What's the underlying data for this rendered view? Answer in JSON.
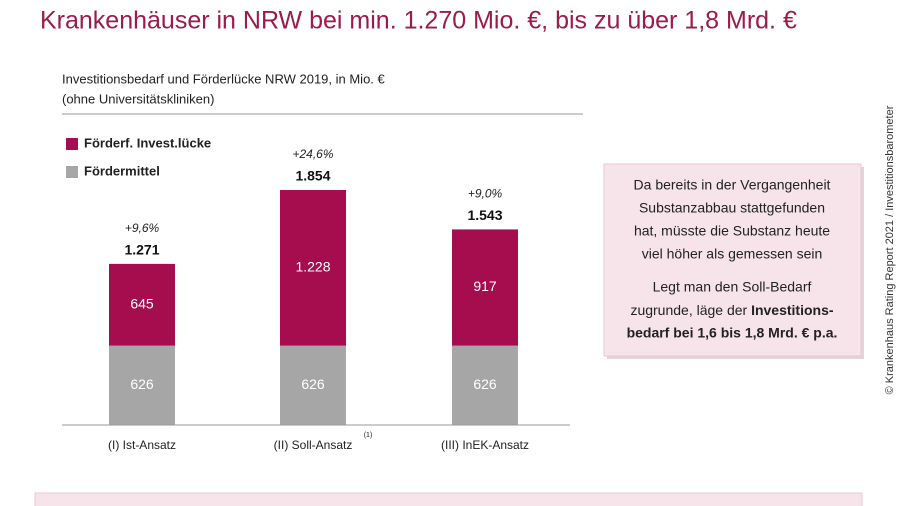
{
  "slide_title": "Krankenhäuser in NRW bei min. 1.270 Mio. €, bis zu über 1,8 Mrd. €",
  "side_note": "© Krankenhaus Rating Report 2021 / Investitionsbarometer",
  "chart_data": {
    "type": "stacked_bar",
    "title": "Investitionsbedarf und Förderlücke NRW 2019, in Mio. €",
    "subtitle": "(ohne Universitätskliniken)",
    "categories": [
      "(I) Ist-Ansatz",
      "(II) Soll-Ansatz",
      "(III) InEK-Ansatz"
    ],
    "footnote": "(1)",
    "series": [
      {
        "name": "Förderf. Invest.lücke",
        "color": "#a50d4e",
        "values": [
          645,
          1228,
          917
        ],
        "value_labels": [
          "645",
          "1.228",
          "917"
        ]
      },
      {
        "name": "Fördermittel",
        "color": "#a6a6a6",
        "values": [
          626,
          626,
          626
        ]
      }
    ],
    "totals": {
      "values": [
        1271,
        1854,
        1543
      ],
      "value_labels": [
        "1.271",
        "1.854",
        "1.543"
      ]
    },
    "growth_labels": [
      "+9,6%",
      "+24,6%",
      "+9,0%"
    ]
  },
  "info_box": {
    "paragraph_1": [
      "Da bereits in der Vergangenheit",
      "Substanzabbau stattgefunden",
      "hat, müsste die Substanz heute",
      "viel höher als gemessen sein"
    ],
    "paragraph_2": [
      "Legt man den Soll-Bedarf",
      "zugrunde, läge der ",
      "Investitions-",
      "bedarf bei 1,6 bis 1,8 Mrd. € p.a."
    ]
  }
}
